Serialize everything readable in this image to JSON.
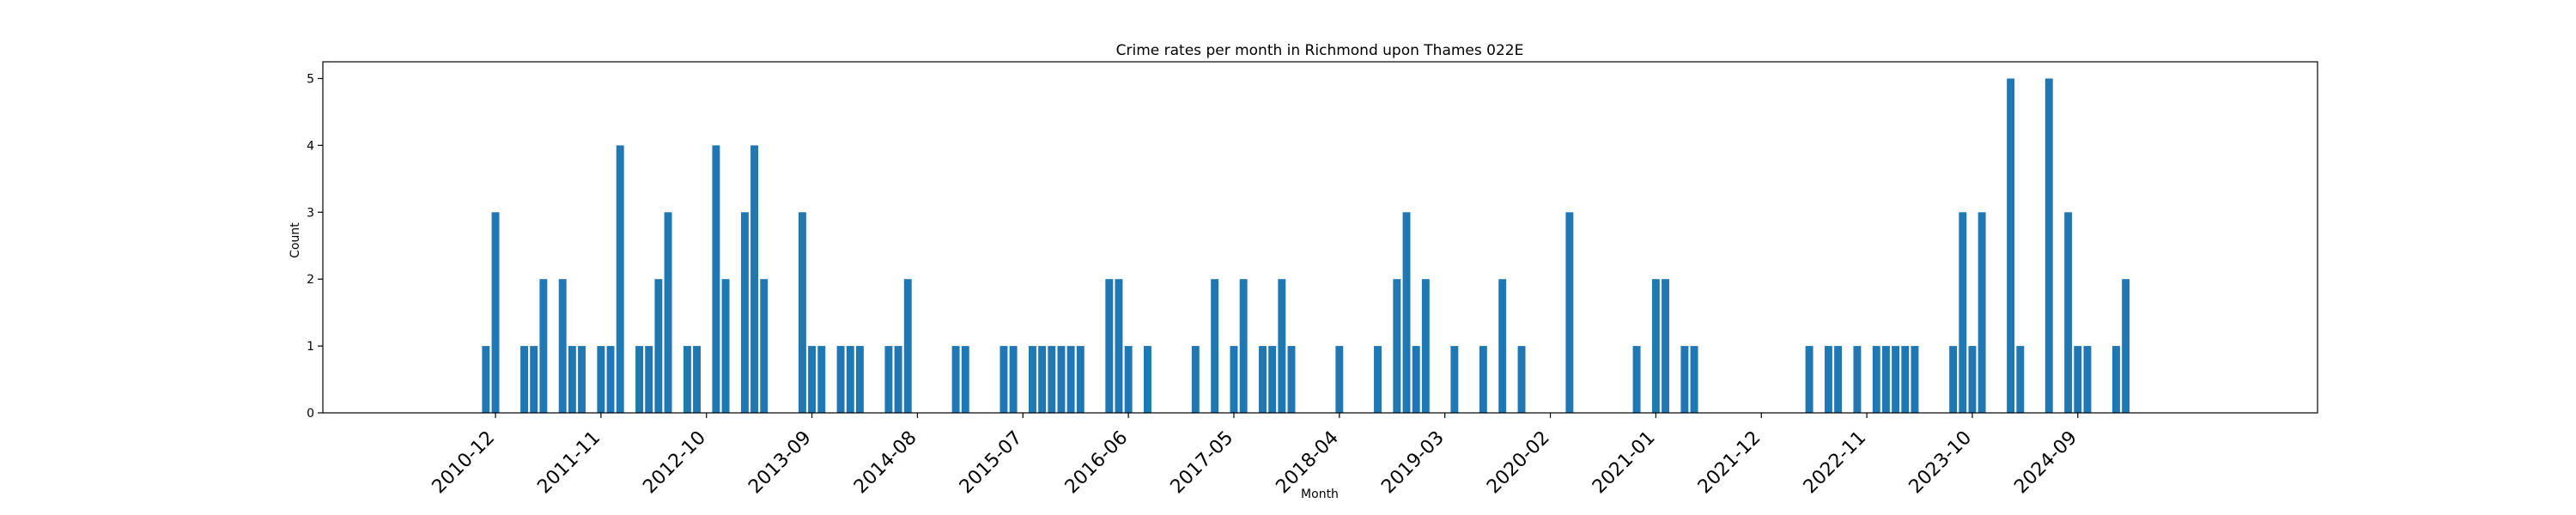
{
  "chart_data": {
    "type": "bar",
    "title": "Crime rates per month in Richmond upon Thames 022E",
    "xlabel": "Month",
    "ylabel": "Count",
    "ylim": [
      0,
      5.25
    ],
    "yticks": [
      0,
      1,
      2,
      3,
      4,
      5
    ],
    "xlim": [
      "2009-06",
      "2026-10"
    ],
    "xticks": [
      "2010-12",
      "2011-11",
      "2012-10",
      "2013-09",
      "2014-08",
      "2015-07",
      "2016-06",
      "2017-05",
      "2018-04",
      "2019-03",
      "2020-02",
      "2021-01",
      "2021-12",
      "2022-11",
      "2023-10",
      "2024-09"
    ],
    "bar_color": "#1f77b4",
    "grid": false,
    "x": [
      "2010-11",
      "2010-12",
      "2011-03",
      "2011-04",
      "2011-05",
      "2011-07",
      "2011-08",
      "2011-09",
      "2011-11",
      "2011-12",
      "2012-01",
      "2012-03",
      "2012-04",
      "2012-05",
      "2012-06",
      "2012-08",
      "2012-09",
      "2012-11",
      "2012-12",
      "2013-02",
      "2013-03",
      "2013-04",
      "2013-08",
      "2013-09",
      "2013-10",
      "2013-12",
      "2014-01",
      "2014-02",
      "2014-05",
      "2014-06",
      "2014-07",
      "2014-12",
      "2015-01",
      "2015-05",
      "2015-06",
      "2015-08",
      "2015-09",
      "2015-10",
      "2015-11",
      "2015-12",
      "2016-01",
      "2016-04",
      "2016-05",
      "2016-06",
      "2016-08",
      "2017-01",
      "2017-03",
      "2017-05",
      "2017-06",
      "2017-08",
      "2017-09",
      "2017-10",
      "2017-11",
      "2018-04",
      "2018-08",
      "2018-10",
      "2018-11",
      "2018-12",
      "2019-01",
      "2019-04",
      "2019-07",
      "2019-09",
      "2019-11",
      "2020-04",
      "2020-11",
      "2021-01",
      "2021-02",
      "2021-04",
      "2021-05",
      "2022-05",
      "2022-07",
      "2022-08",
      "2022-10",
      "2022-12",
      "2023-01",
      "2023-02",
      "2023-03",
      "2023-04",
      "2023-08",
      "2023-09",
      "2023-10",
      "2023-11",
      "2024-02",
      "2024-03",
      "2024-06",
      "2024-08",
      "2024-09",
      "2024-10",
      "2025-01",
      "2025-02"
    ],
    "values": [
      1,
      3,
      1,
      1,
      2,
      2,
      1,
      1,
      1,
      1,
      4,
      1,
      1,
      2,
      3,
      1,
      1,
      4,
      2,
      3,
      4,
      2,
      3,
      1,
      1,
      1,
      1,
      1,
      1,
      1,
      2,
      1,
      1,
      1,
      1,
      1,
      1,
      1,
      1,
      1,
      1,
      2,
      2,
      1,
      1,
      1,
      2,
      1,
      2,
      1,
      1,
      2,
      1,
      1,
      1,
      2,
      3,
      1,
      2,
      1,
      1,
      2,
      1,
      3,
      1,
      2,
      2,
      1,
      1,
      1,
      1,
      1,
      1,
      1,
      1,
      1,
      1,
      1,
      1,
      3,
      1,
      3,
      5,
      1,
      5,
      3,
      1,
      1,
      1,
      2
    ]
  }
}
